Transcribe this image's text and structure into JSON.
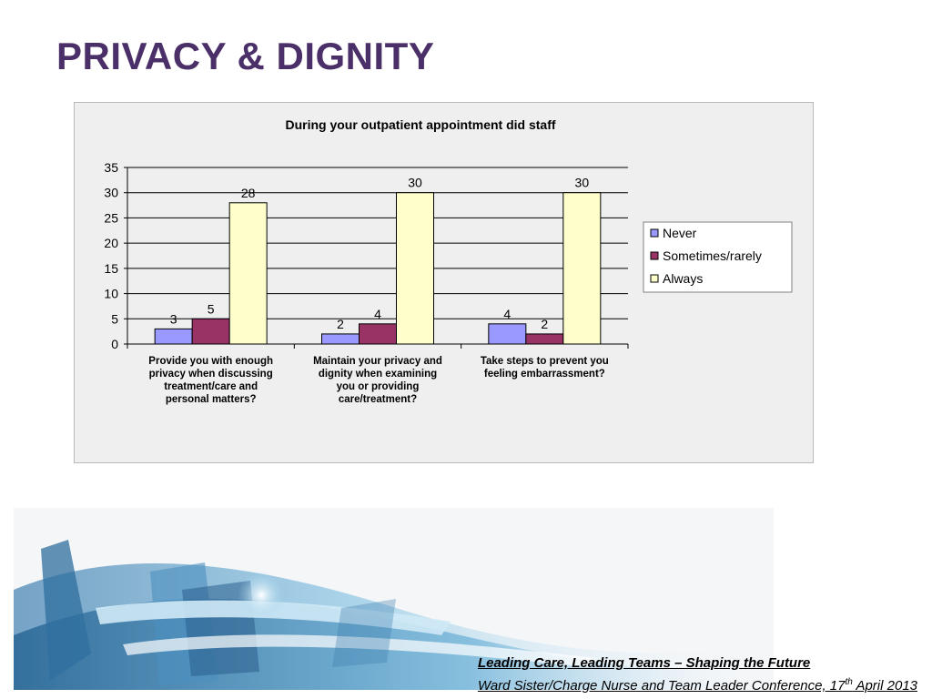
{
  "slide": {
    "title": "PRIVACY & DIGNITY"
  },
  "chart_data": {
    "type": "bar",
    "title": "During your outpatient appointment did staff",
    "categories": [
      [
        "Provide you with enough",
        "privacy when discussing",
        "treatment/care and",
        "personal matters?"
      ],
      [
        "Maintain your privacy and",
        "dignity when examining",
        "you or providing",
        "care/treatment?"
      ],
      [
        "Take steps to prevent you",
        "feeling embarrassment?"
      ]
    ],
    "series": [
      {
        "name": "Never",
        "values": [
          3,
          2,
          4
        ],
        "color": "#9999ff"
      },
      {
        "name": "Sometimes/rarely",
        "values": [
          5,
          4,
          2
        ],
        "color": "#993366"
      },
      {
        "name": "Always",
        "values": [
          28,
          30,
          30
        ],
        "color": "#ffffcc"
      }
    ],
    "ylim": [
      0,
      35
    ],
    "yticks": [
      0,
      5,
      10,
      15,
      20,
      25,
      30,
      35
    ],
    "grid": true,
    "legend_position": "right",
    "data_labels": true
  },
  "footer": {
    "line1": "Leading Care, Leading Teams – Shaping the Future",
    "line2_prefix": "Ward Sister/Charge Nurse and Team Leader Conference, 17",
    "line2_sup": "th",
    "line2_suffix": " April 2013"
  }
}
